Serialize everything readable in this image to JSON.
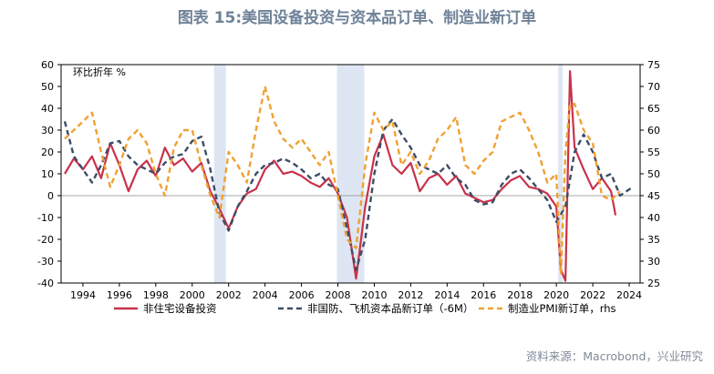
{
  "title": "图表 15:美国设备投资与资本品订单、制造业新订单",
  "source": "资料来源：Macrobond，兴业研究",
  "chart_data": {
    "type": "line",
    "unit_label": "环比折年 %",
    "left_axis": {
      "min": -40,
      "max": 60,
      "ticks": [
        "60",
        "50",
        "40",
        "30",
        "20",
        "10",
        "0",
        "-10",
        "-20",
        "-30",
        "-40"
      ]
    },
    "right_axis": {
      "min": 25,
      "max": 75,
      "ticks": [
        "75",
        "70",
        "65",
        "60",
        "55",
        "50",
        "45",
        "40",
        "35",
        "30",
        "25"
      ]
    },
    "x_axis": {
      "min": 1992.8,
      "max": 2024.6,
      "ticks": [
        "1994",
        "1996",
        "1998",
        "2000",
        "2002",
        "2004",
        "2006",
        "2008",
        "2010",
        "2012",
        "2014",
        "2016",
        "2018",
        "2020",
        "2022",
        "2024"
      ]
    },
    "shaded_periods": [
      [
        2001.2,
        2001.85
      ],
      [
        2007.95,
        2009.45
      ],
      [
        2020.1,
        2020.35
      ]
    ],
    "legend": {
      "position": "bottom"
    },
    "series": [
      {
        "name": "非住宅设备投资",
        "axis": "left",
        "color": "#c8324a",
        "style": "solid",
        "x": [
          1993.0,
          1993.5,
          1994.0,
          1994.5,
          1995.0,
          1995.5,
          1996.0,
          1996.5,
          1997.0,
          1997.5,
          1998.0,
          1998.5,
          1999.0,
          1999.5,
          2000.0,
          2000.5,
          2001.0,
          2001.5,
          2002.0,
          2002.5,
          2003.0,
          2003.5,
          2004.0,
          2004.5,
          2005.0,
          2005.5,
          2006.0,
          2006.5,
          2007.0,
          2007.5,
          2008.0,
          2008.5,
          2009.0,
          2009.5,
          2010.0,
          2010.5,
          2011.0,
          2011.5,
          2012.0,
          2012.5,
          2013.0,
          2013.5,
          2014.0,
          2014.5,
          2015.0,
          2015.5,
          2016.0,
          2016.5,
          2017.0,
          2017.5,
          2018.0,
          2018.5,
          2019.0,
          2019.5,
          2020.0,
          2020.25,
          2020.5,
          2020.75,
          2021.0,
          2021.5,
          2022.0,
          2022.5,
          2023.0,
          2023.25
        ],
        "y": [
          10,
          17,
          12,
          18,
          8,
          24,
          14,
          2,
          12,
          16,
          9,
          22,
          14,
          17,
          11,
          15,
          2,
          -6,
          -15,
          -5,
          1,
          3,
          12,
          16,
          10,
          11,
          9,
          6,
          4,
          8,
          1,
          -10,
          -38,
          -5,
          18,
          28,
          14,
          10,
          15,
          2,
          8,
          10,
          5,
          9,
          1,
          -1,
          -3,
          -2,
          3,
          7,
          9,
          4,
          3,
          1,
          -5,
          -34,
          -39,
          57,
          22,
          12,
          3,
          8,
          2,
          -9
        ]
      },
      {
        "name": "非国防、飞机资本品新订单（-6M）",
        "axis": "left",
        "color": "#3d4d66",
        "style": "dashed",
        "x": [
          1993.0,
          1993.5,
          1994.0,
          1994.5,
          1995.0,
          1995.5,
          1996.0,
          1996.5,
          1997.0,
          1997.5,
          1998.0,
          1998.5,
          1999.0,
          1999.5,
          2000.0,
          2000.5,
          2001.0,
          2001.5,
          2002.0,
          2002.5,
          2003.0,
          2003.5,
          2004.0,
          2004.5,
          2005.0,
          2005.5,
          2006.0,
          2006.5,
          2007.0,
          2007.5,
          2008.0,
          2008.5,
          2009.0,
          2009.5,
          2010.0,
          2010.5,
          2011.0,
          2011.5,
          2012.0,
          2012.5,
          2013.0,
          2013.5,
          2014.0,
          2014.5,
          2015.0,
          2015.5,
          2016.0,
          2016.5,
          2017.0,
          2017.5,
          2018.0,
          2018.5,
          2019.0,
          2019.5,
          2020.0,
          2020.5,
          2021.0,
          2021.5,
          2022.0,
          2022.5,
          2023.0,
          2023.5,
          2024.2
        ],
        "y": [
          34,
          18,
          12,
          6,
          14,
          24,
          25,
          18,
          14,
          12,
          10,
          15,
          18,
          19,
          25,
          27,
          12,
          -8,
          -16,
          -5,
          2,
          10,
          14,
          15,
          17,
          15,
          12,
          8,
          10,
          5,
          3,
          -15,
          -34,
          -20,
          10,
          30,
          35,
          28,
          22,
          14,
          12,
          10,
          14,
          8,
          5,
          -2,
          -4,
          -3,
          5,
          10,
          12,
          8,
          3,
          -2,
          -12,
          -5,
          20,
          28,
          20,
          8,
          10,
          0,
          4
        ]
      },
      {
        "name": "制造业PMI新订单，rhs",
        "axis": "right",
        "color": "#f0a132",
        "style": "dashed",
        "x": [
          1993.0,
          1993.5,
          1994.0,
          1994.5,
          1995.0,
          1995.5,
          1996.0,
          1996.5,
          1997.0,
          1997.5,
          1998.0,
          1998.5,
          1999.0,
          1999.5,
          2000.0,
          2000.5,
          2001.0,
          2001.5,
          2002.0,
          2002.5,
          2003.0,
          2003.5,
          2004.0,
          2004.5,
          2005.0,
          2005.5,
          2006.0,
          2006.5,
          2007.0,
          2007.5,
          2008.0,
          2008.5,
          2009.0,
          2009.5,
          2010.0,
          2010.5,
          2011.0,
          2011.5,
          2012.0,
          2012.5,
          2013.0,
          2013.5,
          2014.0,
          2014.5,
          2015.0,
          2015.5,
          2016.0,
          2016.5,
          2017.0,
          2017.5,
          2018.0,
          2018.5,
          2019.0,
          2019.5,
          2020.0,
          2020.25,
          2020.5,
          2020.75,
          2021.0,
          2021.5,
          2022.0,
          2022.5,
          2023.0,
          2023.5
        ],
        "y": [
          58,
          60,
          62,
          64,
          55,
          47,
          52,
          58,
          60,
          57,
          50,
          45,
          56,
          60,
          60,
          52,
          45,
          40,
          55,
          52,
          48,
          60,
          70,
          62,
          58,
          56,
          58,
          55,
          52,
          55,
          45,
          35,
          33,
          52,
          64,
          60,
          62,
          52,
          55,
          50,
          53,
          58,
          60,
          63,
          52,
          50,
          53,
          55,
          62,
          63,
          64,
          60,
          55,
          48,
          50,
          27,
          55,
          66,
          66,
          60,
          57,
          45,
          44,
          46
        ]
      }
    ]
  }
}
